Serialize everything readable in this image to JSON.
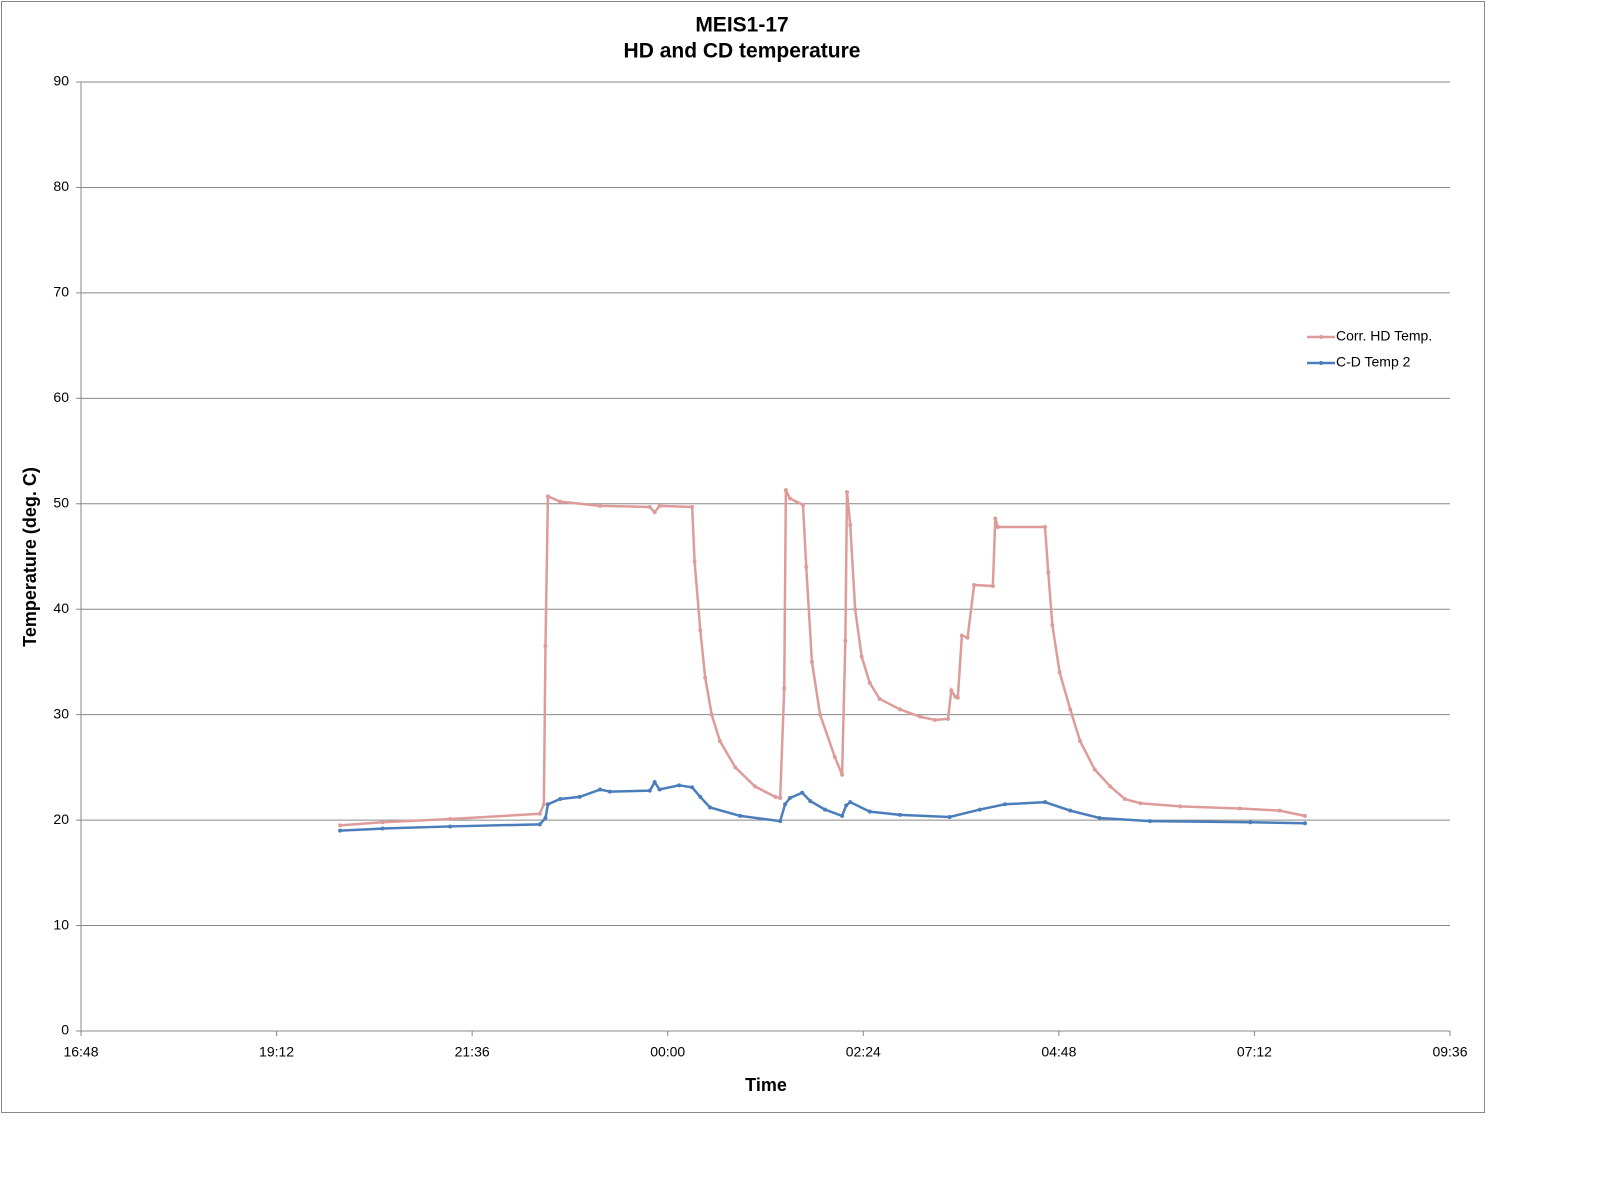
{
  "chart_data": {
    "type": "line",
    "title": "MEIS1-17",
    "subtitle": "HD and CD temperature",
    "x_label": "Time",
    "y_label": "Temperature (deg. C)",
    "xlim": [
      16.8,
      33.6
    ],
    "xticks": [
      {
        "value": 16.8,
        "label": "16:48"
      },
      {
        "value": 19.2,
        "label": "19:12"
      },
      {
        "value": 21.6,
        "label": "21:36"
      },
      {
        "value": 24,
        "label": "00:00"
      },
      {
        "value": 26.4,
        "label": "02:24"
      },
      {
        "value": 28.8,
        "label": "04:48"
      },
      {
        "value": 31.2,
        "label": "07:12"
      },
      {
        "value": 33.6,
        "label": "09:36"
      }
    ],
    "ylim": [
      0,
      90
    ],
    "yticks": [
      0,
      10,
      20,
      30,
      40,
      50,
      60,
      70,
      80,
      90
    ],
    "grid": true,
    "legend": "right",
    "series": [
      {
        "name": "Corr. HD Temp.",
        "color": "#dd9c9a",
        "x": [
          19.98,
          20.5,
          21.33,
          22.43,
          22.48,
          22.5,
          22.53,
          22.68,
          23.17,
          23.78,
          23.84,
          23.9,
          24.3,
          24.33,
          24.4,
          24.46,
          24.54,
          24.64,
          24.83,
          25.07,
          25.32,
          25.38,
          25.43,
          25.45,
          25.5,
          25.66,
          25.7,
          25.77,
          25.87,
          26.05,
          26.14,
          26.18,
          26.2,
          26.24,
          26.3,
          26.38,
          26.48,
          26.6,
          26.85,
          27.1,
          27.28,
          27.44,
          27.48,
          27.53,
          27.56,
          27.61,
          27.68,
          27.76,
          27.99,
          28.02,
          28.05,
          28.63,
          28.67,
          28.72,
          28.81,
          28.94,
          29.06,
          29.24,
          29.43,
          29.61,
          29.8,
          30.29,
          31.02,
          31.51,
          31.82
        ],
        "values": [
          19.5,
          19.8,
          20.1,
          20.6,
          21.5,
          36.5,
          50.7,
          50.2,
          49.8,
          49.7,
          49.2,
          49.8,
          49.7,
          44.5,
          38,
          33.5,
          30,
          27.5,
          25,
          23.2,
          22.2,
          22.1,
          32.5,
          51.3,
          50.5,
          49.9,
          44,
          35,
          30,
          26,
          24.3,
          37,
          51.1,
          48,
          40,
          35.5,
          33,
          31.5,
          30.5,
          29.8,
          29.5,
          29.6,
          32.3,
          31.7,
          31.6,
          37.5,
          37.3,
          42.3,
          42.2,
          48.6,
          47.8,
          47.8,
          43.5,
          38.5,
          34,
          30.5,
          27.5,
          24.8,
          23.2,
          22,
          21.6,
          21.3,
          21.1,
          20.9,
          20.4
        ]
      },
      {
        "name": "C-D Temp 2",
        "color": "#4a7ebb",
        "x": [
          19.98,
          20.5,
          21.33,
          22.43,
          22.5,
          22.53,
          22.68,
          22.92,
          23.17,
          23.29,
          23.78,
          23.84,
          23.9,
          24.14,
          24.3,
          24.4,
          24.52,
          24.89,
          25.38,
          25.44,
          25.5,
          25.65,
          25.75,
          25.93,
          26.14,
          26.19,
          26.24,
          26.48,
          26.85,
          27.46,
          27.83,
          28.14,
          28.63,
          28.94,
          29.3,
          29.92,
          31.15,
          31.82
        ],
        "values": [
          19.0,
          19.2,
          19.4,
          19.6,
          20.2,
          21.5,
          22.0,
          22.2,
          22.9,
          22.7,
          22.8,
          23.6,
          22.9,
          23.3,
          23.1,
          22.2,
          21.2,
          20.4,
          19.9,
          21.5,
          22.1,
          22.6,
          21.8,
          21.0,
          20.4,
          21.4,
          21.7,
          20.8,
          20.5,
          20.3,
          21.0,
          21.5,
          21.7,
          20.9,
          20.2,
          19.9,
          19.8,
          19.7
        ]
      }
    ]
  }
}
